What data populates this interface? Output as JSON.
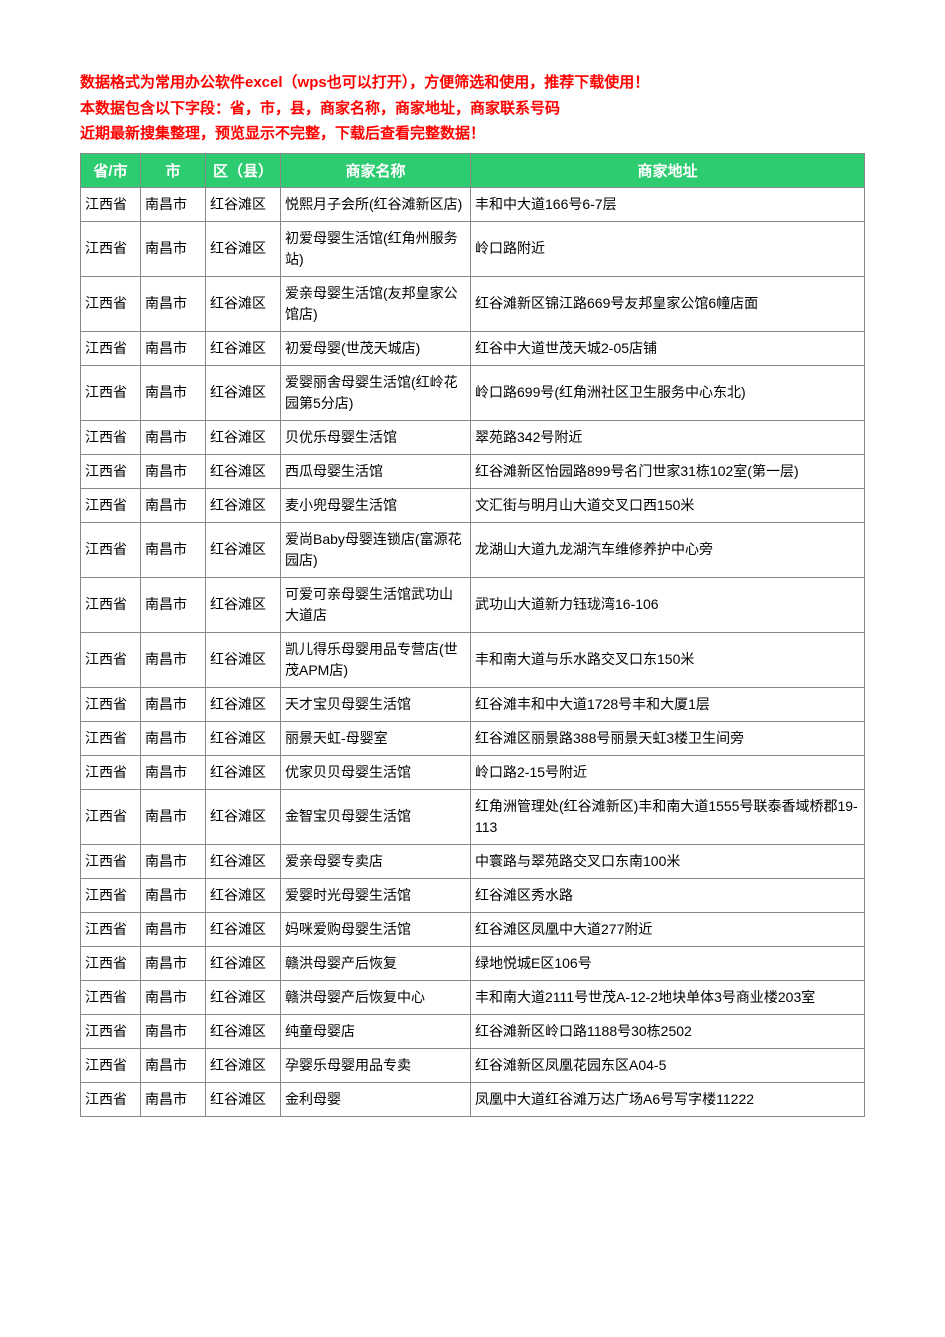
{
  "intro": {
    "line1": "数据格式为常用办公软件excel（wps也可以打开），方便筛选和使用，推荐下载使用！",
    "line2": "本数据包含以下字段：省，市，县，商家名称，商家地址，商家联系号码",
    "line3": "近期最新搜集整理，预览显示不完整，下载后查看完整数据！"
  },
  "table": {
    "columns": [
      "省/市",
      "市",
      "区（县）",
      "商家名称",
      "商家地址"
    ],
    "header_bg": "#2ecc71",
    "header_color": "#ffffff",
    "border_color": "#888888",
    "rows": [
      [
        "江西省",
        "南昌市",
        "红谷滩区",
        "悦熙月子会所(红谷滩新区店)",
        "丰和中大道166号6-7层"
      ],
      [
        "江西省",
        "南昌市",
        "红谷滩区",
        "初爱母婴生活馆(红角州服务站)",
        "岭口路附近"
      ],
      [
        "江西省",
        "南昌市",
        "红谷滩区",
        "爱亲母婴生活馆(友邦皇家公馆店)",
        "红谷滩新区锦江路669号友邦皇家公馆6幢店面"
      ],
      [
        "江西省",
        "南昌市",
        "红谷滩区",
        "初爱母婴(世茂天城店)",
        "红谷中大道世茂天城2-05店铺"
      ],
      [
        "江西省",
        "南昌市",
        "红谷滩区",
        "爱婴丽舍母婴生活馆(红岭花园第5分店)",
        "岭口路699号(红角洲社区卫生服务中心东北)"
      ],
      [
        "江西省",
        "南昌市",
        "红谷滩区",
        "贝优乐母婴生活馆",
        "翠苑路342号附近"
      ],
      [
        "江西省",
        "南昌市",
        "红谷滩区",
        "西瓜母婴生活馆",
        "红谷滩新区怡园路899号名门世家31栋102室(第一层)"
      ],
      [
        "江西省",
        "南昌市",
        "红谷滩区",
        "麦小兜母婴生活馆",
        "文汇街与明月山大道交叉口西150米"
      ],
      [
        "江西省",
        "南昌市",
        "红谷滩区",
        "爱尚Baby母婴连锁店(富源花园店)",
        "龙湖山大道九龙湖汽车维修养护中心旁"
      ],
      [
        "江西省",
        "南昌市",
        "红谷滩区",
        "可爱可亲母婴生活馆武功山大道店",
        "武功山大道新力钰珑湾16-106"
      ],
      [
        "江西省",
        "南昌市",
        "红谷滩区",
        "凯儿得乐母婴用品专营店(世茂APM店)",
        "丰和南大道与乐水路交叉口东150米"
      ],
      [
        "江西省",
        "南昌市",
        "红谷滩区",
        "天才宝贝母婴生活馆",
        "红谷滩丰和中大道1728号丰和大厦1层"
      ],
      [
        "江西省",
        "南昌市",
        "红谷滩区",
        "丽景天虹-母婴室",
        "红谷滩区丽景路388号丽景天虹3楼卫生间旁"
      ],
      [
        "江西省",
        "南昌市",
        "红谷滩区",
        "优家贝贝母婴生活馆",
        "岭口路2-15号附近"
      ],
      [
        "江西省",
        "南昌市",
        "红谷滩区",
        "金智宝贝母婴生活馆",
        "红角洲管理处(红谷滩新区)丰和南大道1555号联泰香域桥郡19-113"
      ],
      [
        "江西省",
        "南昌市",
        "红谷滩区",
        "爱亲母婴专卖店",
        "中寰路与翠苑路交叉口东南100米"
      ],
      [
        "江西省",
        "南昌市",
        "红谷滩区",
        "爱婴时光母婴生活馆",
        "红谷滩区秀水路"
      ],
      [
        "江西省",
        "南昌市",
        "红谷滩区",
        "妈咪爱购母婴生活馆",
        "红谷滩区凤凰中大道277附近"
      ],
      [
        "江西省",
        "南昌市",
        "红谷滩区",
        "赣洪母婴产后恢复",
        "绿地悦城E区106号"
      ],
      [
        "江西省",
        "南昌市",
        "红谷滩区",
        "赣洪母婴产后恢复中心",
        "丰和南大道2111号世茂A-12-2地块单体3号商业楼203室"
      ],
      [
        "江西省",
        "南昌市",
        "红谷滩区",
        "纯童母婴店",
        "红谷滩新区岭口路1188号30栋2502"
      ],
      [
        "江西省",
        "南昌市",
        "红谷滩区",
        "孕婴乐母婴用品专卖",
        "红谷滩新区凤凰花园东区A04-5"
      ],
      [
        "江西省",
        "南昌市",
        "红谷滩区",
        "金利母婴",
        "凤凰中大道红谷滩万达广场A6号写字楼11222"
      ]
    ]
  }
}
